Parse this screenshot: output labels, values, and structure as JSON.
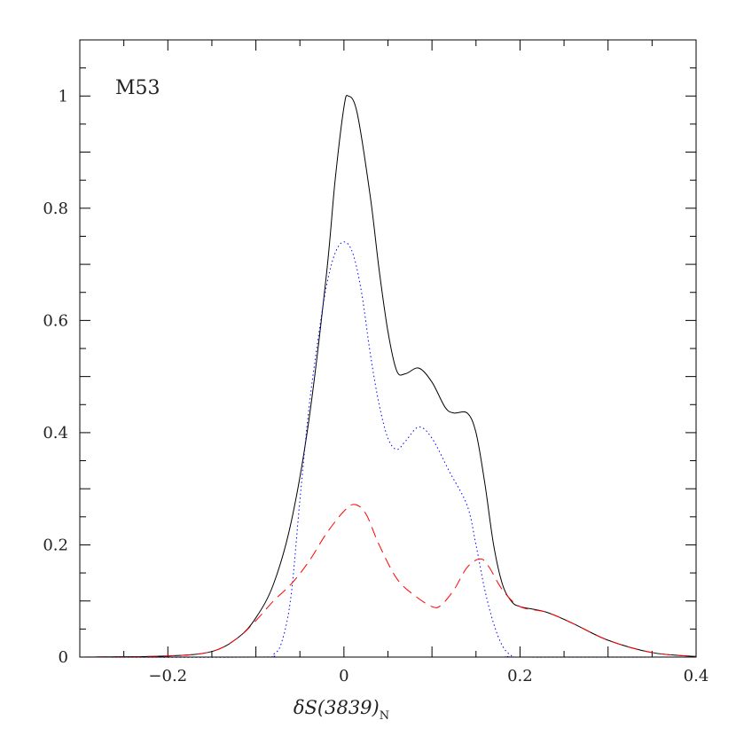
{
  "chart_data": {
    "type": "line",
    "title": "",
    "annotation": "M53",
    "xlabel": "δS(3839)",
    "xlabel_subscript": "N",
    "ylabel": "",
    "xlim": [
      -0.3,
      0.4
    ],
    "ylim": [
      0,
      1.1
    ],
    "x_ticks": [
      -0.2,
      0,
      0.2,
      0.4
    ],
    "x_tick_labels": [
      "−0.2",
      "0",
      "0.2",
      "0.4"
    ],
    "y_ticks": [
      0,
      0.2,
      0.4,
      0.6,
      0.8,
      1
    ],
    "y_tick_labels": [
      "0",
      "0.2",
      "0.4",
      "0.6",
      "0.8",
      "1"
    ],
    "grid": false,
    "series": [
      {
        "style": "solid",
        "color": "#000000",
        "x": [
          -0.3,
          -0.2,
          -0.15,
          -0.12,
          -0.1,
          -0.08,
          -0.06,
          -0.04,
          -0.02,
          -0.01,
          0,
          0.005,
          0.015,
          0.03,
          0.04,
          0.05,
          0.06,
          0.07,
          0.085,
          0.1,
          0.115,
          0.125,
          0.14,
          0.15,
          0.16,
          0.17,
          0.18,
          0.19,
          0.2,
          0.23,
          0.26,
          0.3,
          0.35,
          0.4
        ],
        "y": [
          0,
          0.002,
          0.01,
          0.035,
          0.07,
          0.13,
          0.24,
          0.42,
          0.68,
          0.85,
          0.98,
          1.0,
          0.97,
          0.82,
          0.69,
          0.58,
          0.51,
          0.505,
          0.515,
          0.49,
          0.445,
          0.435,
          0.435,
          0.4,
          0.31,
          0.2,
          0.13,
          0.1,
          0.09,
          0.08,
          0.06,
          0.03,
          0.008,
          0.001
        ]
      },
      {
        "style": "dotted",
        "color": "#0000ff",
        "x": [
          -0.3,
          -0.1,
          -0.08,
          -0.07,
          -0.06,
          -0.05,
          -0.04,
          -0.03,
          -0.02,
          -0.01,
          0,
          0.01,
          0.02,
          0.03,
          0.04,
          0.05,
          0.06,
          0.07,
          0.085,
          0.1,
          0.12,
          0.14,
          0.15,
          0.16,
          0.17,
          0.18,
          0.19,
          0.2,
          0.4
        ],
        "y": [
          0,
          0,
          0.005,
          0.03,
          0.11,
          0.28,
          0.44,
          0.56,
          0.66,
          0.72,
          0.74,
          0.72,
          0.65,
          0.54,
          0.45,
          0.39,
          0.37,
          0.385,
          0.41,
          0.39,
          0.33,
          0.27,
          0.2,
          0.12,
          0.06,
          0.02,
          0.003,
          0,
          0
        ]
      },
      {
        "style": "dashed",
        "color": "#ff0000",
        "x": [
          -0.3,
          -0.2,
          -0.15,
          -0.12,
          -0.1,
          -0.08,
          -0.06,
          -0.04,
          -0.02,
          0,
          0.012,
          0.025,
          0.04,
          0.06,
          0.08,
          0.1,
          0.11,
          0.125,
          0.14,
          0.155,
          0.165,
          0.18,
          0.2,
          0.23,
          0.26,
          0.3,
          0.35,
          0.4
        ],
        "y": [
          0,
          0.002,
          0.01,
          0.035,
          0.065,
          0.1,
          0.13,
          0.17,
          0.22,
          0.26,
          0.272,
          0.255,
          0.2,
          0.14,
          0.11,
          0.09,
          0.092,
          0.12,
          0.16,
          0.175,
          0.16,
          0.12,
          0.09,
          0.08,
          0.06,
          0.03,
          0.008,
          0.001
        ]
      }
    ]
  }
}
